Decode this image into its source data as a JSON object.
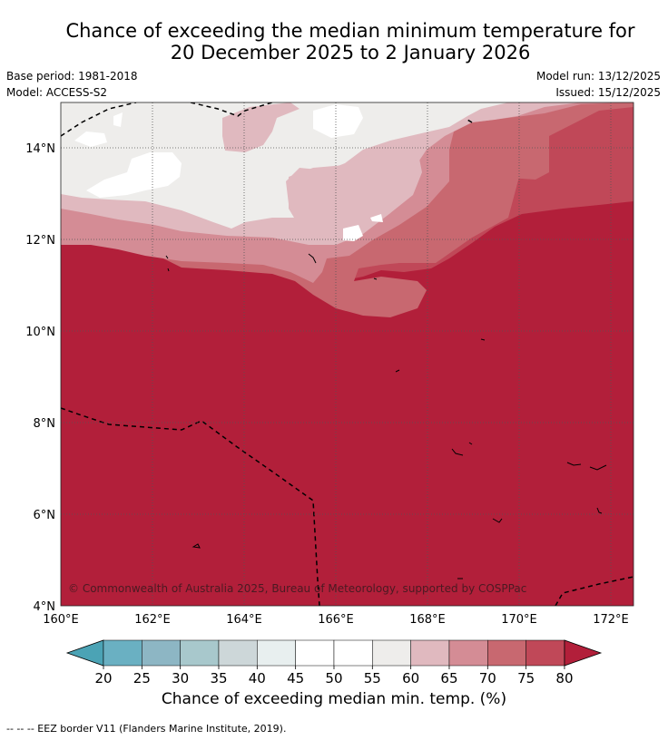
{
  "title_line1": "Chance of exceeding the median minimum temperature for",
  "title_line2": "20 December 2025 to 2 January 2026",
  "meta_left": [
    "Base period: 1981-2018",
    "Model: ACCESS-S2"
  ],
  "meta_right": [
    "Model run: 13/12/2025",
    "Issued: 15/12/2025"
  ],
  "lat_labels": [
    "14°N",
    "12°N",
    "10°N",
    "8°N",
    "6°N",
    "4°N"
  ],
  "lon_labels": [
    "160°E",
    "162°E",
    "164°E",
    "166°E",
    "168°E",
    "170°E",
    "172°E"
  ],
  "copyright": "© Commonwealth of Australia 2025, Bureau of Meteorology, supported by COSPPac",
  "colorbar": {
    "ticks": [
      "20",
      "25",
      "30",
      "35",
      "40",
      "45",
      "50",
      "55",
      "60",
      "65",
      "70",
      "75",
      "80"
    ],
    "colors": [
      "#6ab0c2",
      "#8db6c4",
      "#a8c8cc",
      "#cdd7d9",
      "#e8efef",
      "#ffffff",
      "#ffffff",
      "#eeedeb",
      "#e0b9bf",
      "#d48c95",
      "#c86870",
      "#c04858"
    ],
    "under_color": "#4ba3b5",
    "over_color": "#b21f3a",
    "label": "Chance of exceeding median min. temp. (%)"
  },
  "footer": "--  --  -- EEZ border V11 (Flanders Marine Institute, 2019).",
  "legend_colors": {
    "c80": "#b21f3a",
    "c75": "#c04858",
    "c70": "#c86870",
    "c65": "#d48c95",
    "c60": "#e0b9bf",
    "c55": "#eeedeb",
    "c50": "#ffffff"
  }
}
